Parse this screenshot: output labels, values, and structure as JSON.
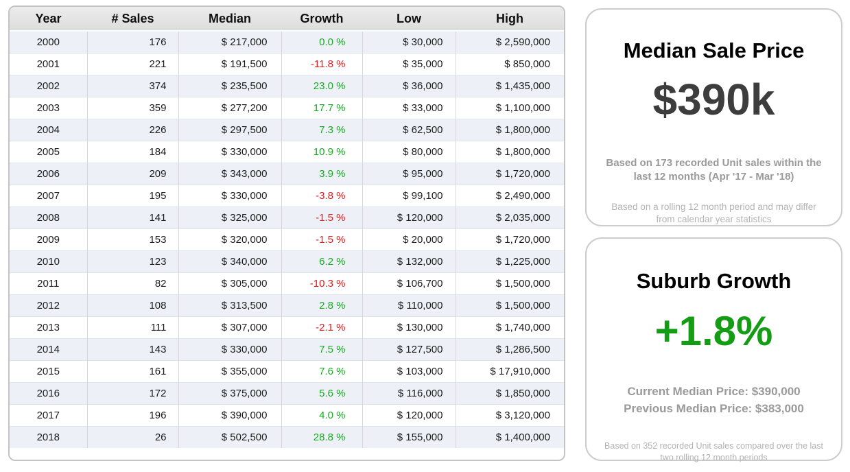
{
  "chart_data": {
    "type": "table",
    "columns": [
      "Year",
      "# Sales",
      "Median",
      "Growth",
      "Low",
      "High"
    ],
    "rows": [
      [
        "2000",
        "176",
        "$ 217,000",
        "0.0 %",
        "$ 30,000",
        "$ 2,590,000"
      ],
      [
        "2001",
        "221",
        "$ 191,500",
        "-11.8 %",
        "$ 35,000",
        "$ 850,000"
      ],
      [
        "2002",
        "374",
        "$ 235,500",
        "23.0 %",
        "$ 36,000",
        "$ 1,435,000"
      ],
      [
        "2003",
        "359",
        "$ 277,200",
        "17.7 %",
        "$ 33,000",
        "$ 1,100,000"
      ],
      [
        "2004",
        "226",
        "$ 297,500",
        "7.3 %",
        "$ 62,500",
        "$ 1,800,000"
      ],
      [
        "2005",
        "184",
        "$ 330,000",
        "10.9 %",
        "$ 80,000",
        "$ 1,800,000"
      ],
      [
        "2006",
        "209",
        "$ 343,000",
        "3.9 %",
        "$ 95,000",
        "$ 1,720,000"
      ],
      [
        "2007",
        "195",
        "$ 330,000",
        "-3.8 %",
        "$ 99,100",
        "$ 2,490,000"
      ],
      [
        "2008",
        "141",
        "$ 325,000",
        "-1.5 %",
        "$ 120,000",
        "$ 2,035,000"
      ],
      [
        "2009",
        "153",
        "$ 320,000",
        "-1.5 %",
        "$ 20,000",
        "$ 1,720,000"
      ],
      [
        "2010",
        "123",
        "$ 340,000",
        "6.2 %",
        "$ 132,000",
        "$ 1,225,000"
      ],
      [
        "2011",
        "82",
        "$ 305,000",
        "-10.3 %",
        "$ 106,700",
        "$ 1,500,000"
      ],
      [
        "2012",
        "108",
        "$ 313,500",
        "2.8 %",
        "$ 110,000",
        "$ 1,500,000"
      ],
      [
        "2013",
        "111",
        "$ 307,000",
        "-2.1 %",
        "$ 130,000",
        "$ 1,740,000"
      ],
      [
        "2014",
        "143",
        "$ 330,000",
        "7.5 %",
        "$ 127,500",
        "$ 1,286,500"
      ],
      [
        "2015",
        "161",
        "$ 355,000",
        "7.6 %",
        "$ 103,000",
        "$ 17,910,000"
      ],
      [
        "2016",
        "172",
        "$ 375,000",
        "5.6 %",
        "$ 116,000",
        "$ 1,850,000"
      ],
      [
        "2017",
        "196",
        "$ 390,000",
        "4.0 %",
        "$ 120,000",
        "$ 3,120,000"
      ],
      [
        "2018",
        "26",
        "$ 502,500",
        "28.8 %",
        "$ 155,000",
        "$ 1,400,000"
      ]
    ]
  },
  "cards": {
    "median": {
      "title": "Median Sale Price",
      "value": "$390k",
      "subtitle": "Based on 173 recorded Unit sales within the last 12 months (Apr '17 - Mar '18)",
      "footnote": "Based on a rolling 12 month period and may differ from calendar year statistics"
    },
    "growth": {
      "title": "Suburb Growth",
      "value": "+1.8%",
      "current_line": "Current Median Price: $390,000",
      "previous_line": "Previous Median Price: $383,000",
      "footnote": "Based on 352 recorded Unit sales compared over the last two rolling 12 month periods"
    }
  },
  "colors": {
    "positive": "#16ab20",
    "negative": "#e31b1b",
    "growth_green": "#149c14",
    "value_dark": "#3d3d3d"
  }
}
